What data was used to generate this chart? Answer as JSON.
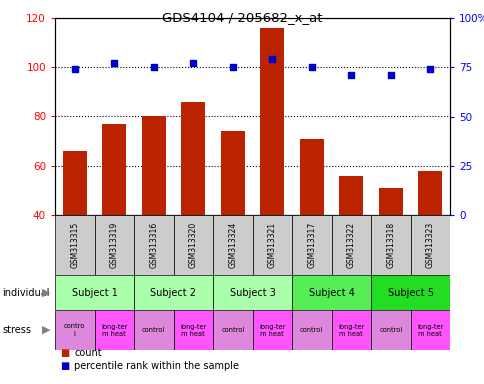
{
  "title": "GDS4104 / 205682_x_at",
  "samples": [
    "GSM313315",
    "GSM313319",
    "GSM313316",
    "GSM313320",
    "GSM313324",
    "GSM313321",
    "GSM313317",
    "GSM313322",
    "GSM313318",
    "GSM313323"
  ],
  "counts": [
    66,
    77,
    80,
    86,
    74,
    116,
    71,
    56,
    51,
    58
  ],
  "percentile_ranks": [
    74,
    77,
    75,
    77,
    75,
    79,
    75,
    71,
    71,
    74
  ],
  "ylim_left": [
    40,
    120
  ],
  "ylim_right": [
    0,
    100
  ],
  "yticks_left": [
    40,
    60,
    80,
    100,
    120
  ],
  "yticks_right": [
    0,
    25,
    50,
    75,
    100
  ],
  "ytick_labels_right": [
    "0",
    "25",
    "50",
    "75",
    "100%"
  ],
  "bar_color": "#bb2200",
  "dot_color": "#0000cc",
  "subjects": [
    {
      "label": "Subject 1",
      "start": 0,
      "end": 2,
      "color": "#aaffaa"
    },
    {
      "label": "Subject 2",
      "start": 2,
      "end": 4,
      "color": "#aaffaa"
    },
    {
      "label": "Subject 3",
      "start": 4,
      "end": 6,
      "color": "#aaffaa"
    },
    {
      "label": "Subject 4",
      "start": 6,
      "end": 8,
      "color": "#55ee55"
    },
    {
      "label": "Subject 5",
      "start": 8,
      "end": 10,
      "color": "#22dd22"
    }
  ],
  "stress_labels": [
    "contro\nl",
    "long-ter\nm heat",
    "control",
    "long-ter\nm heat",
    "control",
    "long-ter\nm heat",
    "control",
    "long-ter\nm heat",
    "control",
    "long-ter\nm heat"
  ],
  "stress_colors": [
    "#dd88dd",
    "#ff55ff",
    "#dd88dd",
    "#ff55ff",
    "#dd88dd",
    "#ff55ff",
    "#dd88dd",
    "#ff55ff",
    "#dd88dd",
    "#ff55ff"
  ],
  "individual_label": "individual",
  "stress_label": "stress",
  "legend_count_label": "count",
  "legend_pct_label": "percentile rank within the sample",
  "sample_bg_color": "#cccccc"
}
